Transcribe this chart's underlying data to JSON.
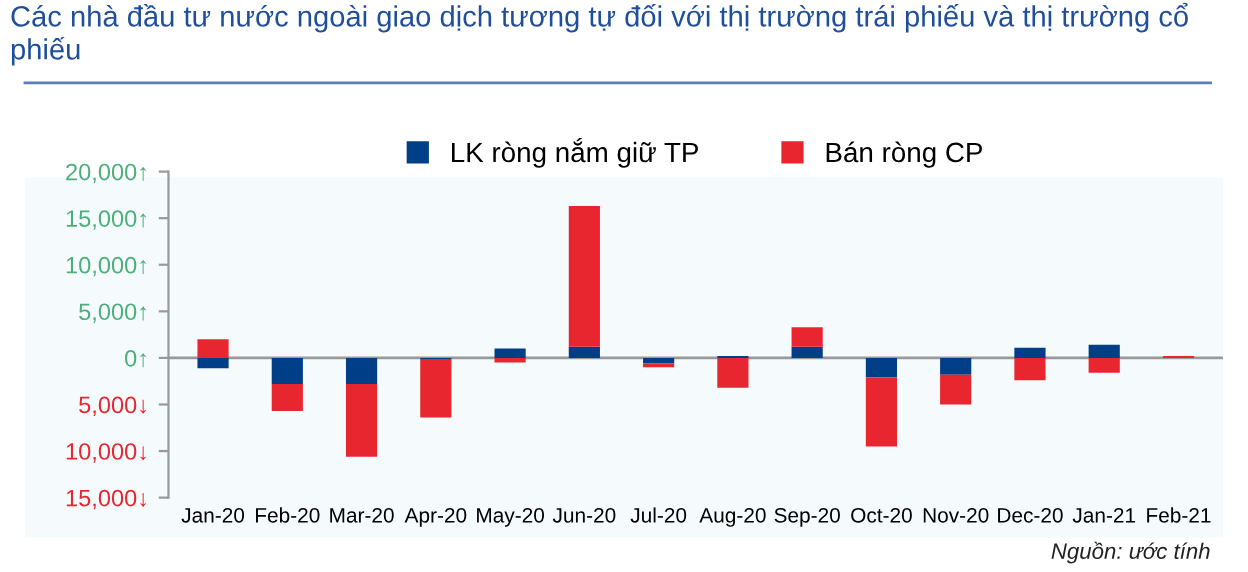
{
  "chart_data": {
    "type": "bar",
    "stacked": true,
    "title": "Các nhà đầu tư nước ngoài giao dịch tương tự đối với thị trường trái phiếu và thị trường cổ phiếu",
    "categories": [
      "Jan-20",
      "Feb-20",
      "Mar-20",
      "Apr-20",
      "May-20",
      "Jun-20",
      "Jul-20",
      "Aug-20",
      "Sep-20",
      "Oct-20",
      "Nov-20",
      "Dec-20",
      "Jan-21",
      "Feb-21"
    ],
    "series": [
      {
        "name": "LK ròng nắm giữ TP",
        "color": "#003f87",
        "values": [
          -1100,
          -2800,
          -2800,
          -200,
          1000,
          1200,
          -600,
          200,
          1200,
          -2100,
          -1800,
          1100,
          1400,
          0
        ]
      },
      {
        "name": "Bán ròng CP",
        "color": "#e8262f",
        "values": [
          2000,
          -2900,
          -7800,
          -6200,
          -500,
          15100,
          -400,
          -3200,
          2100,
          -7400,
          -3200,
          -2400,
          -1600,
          200
        ]
      }
    ],
    "ylim": [
      -15000,
      20000
    ],
    "yticks": [
      {
        "value": 20000,
        "label": "20,000↑"
      },
      {
        "value": 15000,
        "label": "15,000↑"
      },
      {
        "value": 10000,
        "label": "10,000↑"
      },
      {
        "value": 5000,
        "label": "5,000↑"
      },
      {
        "value": 0,
        "label": "0↑"
      },
      {
        "value": -5000,
        "label": "5,000↓"
      },
      {
        "value": -10000,
        "label": "10,000↓"
      },
      {
        "value": -15000,
        "label": "15,000↓"
      }
    ],
    "legend": "top",
    "annotations": [
      "Nguồn: ước tính"
    ]
  }
}
